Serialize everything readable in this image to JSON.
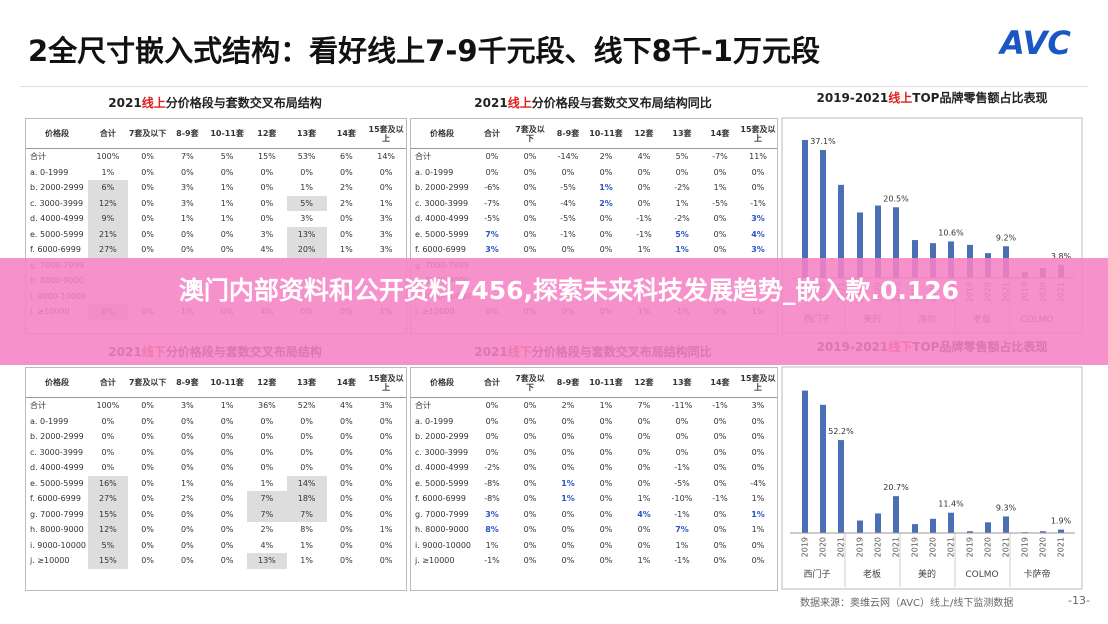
{
  "header": {
    "title": "2全尺寸嵌入式结构：看好线上7-9千元段、线下8千-1万元段",
    "logo": "AVC"
  },
  "tables": [
    {
      "title_parts": [
        "2021",
        "线上",
        "分价格段与套数交叉布局结构"
      ],
      "columns": [
        "价格段",
        "合计",
        "7套及以下",
        "8-9套",
        "10-11套",
        "12套",
        "13套",
        "14套",
        "15套及以上"
      ],
      "rows": [
        {
          "label": "合计",
          "cells": [
            "100%",
            "0%",
            "7%",
            "5%",
            "15%",
            "53%",
            "6%",
            "14%"
          ]
        },
        {
          "label": "a. 0-1999",
          "cells": [
            "1%",
            "0%",
            "0%",
            "0%",
            "0%",
            "0%",
            "0%",
            "0%"
          ]
        },
        {
          "label": "b. 2000-2999",
          "cells": [
            "6%",
            "0%",
            "3%",
            "1%",
            "0%",
            "1%",
            "2%",
            "0%"
          ]
        },
        {
          "label": "c. 3000-3999",
          "cells": [
            "12%",
            "0%",
            "3%",
            "1%",
            "0%",
            "5%",
            "2%",
            "1%"
          ]
        },
        {
          "label": "d. 4000-4999",
          "cells": [
            "9%",
            "0%",
            "1%",
            "1%",
            "0%",
            "3%",
            "0%",
            "3%"
          ]
        },
        {
          "label": "e. 5000-5999",
          "cells": [
            "21%",
            "0%",
            "0%",
            "0%",
            "3%",
            "13%",
            "0%",
            "3%"
          ]
        },
        {
          "label": "f. 6000-6999",
          "cells": [
            "27%",
            "0%",
            "0%",
            "0%",
            "4%",
            "20%",
            "1%",
            "3%"
          ]
        },
        {
          "label": "g. 7000-7999",
          "cells": []
        },
        {
          "label": "h. 8000-9000",
          "cells": []
        },
        {
          "label": "i. 9000-10000",
          "cells": []
        },
        {
          "label": "j. ≥10000",
          "cells": [
            "6%",
            "0%",
            "1%",
            "0%",
            "4%",
            "0%",
            "0%",
            "1%"
          ]
        }
      ],
      "shaded": [
        [
          2,
          0
        ],
        [
          3,
          0
        ],
        [
          4,
          0
        ],
        [
          5,
          0
        ],
        [
          6,
          0
        ],
        [
          7,
          0
        ],
        [
          8,
          0
        ],
        [
          9,
          0
        ],
        [
          10,
          0
        ],
        [
          3,
          5
        ],
        [
          5,
          5
        ],
        [
          6,
          5
        ]
      ],
      "blue": []
    },
    {
      "title_parts": [
        "2021",
        "线上",
        "分价格段与套数交叉布局结构同比"
      ],
      "columns": [
        "价格段",
        "合计",
        "7套及以下",
        "8-9套",
        "10-11套",
        "12套",
        "13套",
        "14套",
        "15套及以上"
      ],
      "rows": [
        {
          "label": "合计",
          "cells": [
            "0%",
            "0%",
            "-14%",
            "2%",
            "4%",
            "5%",
            "-7%",
            "11%"
          ]
        },
        {
          "label": "a. 0-1999",
          "cells": [
            "0%",
            "0%",
            "0%",
            "0%",
            "0%",
            "0%",
            "0%",
            "0%"
          ]
        },
        {
          "label": "b. 2000-2999",
          "cells": [
            "-6%",
            "0%",
            "-5%",
            "1%",
            "0%",
            "-2%",
            "1%",
            "0%"
          ]
        },
        {
          "label": "c. 3000-3999",
          "cells": [
            "-7%",
            "0%",
            "-4%",
            "2%",
            "0%",
            "1%",
            "-5%",
            "-1%"
          ]
        },
        {
          "label": "d. 4000-4999",
          "cells": [
            "-5%",
            "0%",
            "-5%",
            "0%",
            "-1%",
            "-2%",
            "0%",
            "3%"
          ]
        },
        {
          "label": "e. 5000-5999",
          "cells": [
            "7%",
            "0%",
            "-1%",
            "0%",
            "-1%",
            "5%",
            "0%",
            "4%"
          ]
        },
        {
          "label": "f. 6000-6999",
          "cells": [
            "3%",
            "0%",
            "0%",
            "0%",
            "1%",
            "1%",
            "0%",
            "3%"
          ]
        },
        {
          "label": "g. 7000-7999",
          "cells": []
        },
        {
          "label": "h. 8000-9000",
          "cells": []
        },
        {
          "label": "i. 9000-10000",
          "cells": []
        },
        {
          "label": "j. ≥10000",
          "cells": [
            "0%",
            "0%",
            "0%",
            "0%",
            "1%",
            "-1%",
            "0%",
            "1%"
          ]
        }
      ],
      "shaded": [],
      "blue": [
        [
          5,
          0
        ],
        [
          6,
          0
        ],
        [
          2,
          3
        ],
        [
          3,
          3
        ],
        [
          5,
          5
        ],
        [
          6,
          5
        ],
        [
          4,
          7
        ],
        [
          5,
          7
        ],
        [
          6,
          7
        ]
      ]
    },
    {
      "title_parts": [
        "2021",
        "线下",
        "分价格段与套数交叉布局结构"
      ],
      "columns": [
        "价格段",
        "合计",
        "7套及以下",
        "8-9套",
        "10-11套",
        "12套",
        "13套",
        "14套",
        "15套及以上"
      ],
      "rows": [
        {
          "label": "合计",
          "cells": [
            "100%",
            "0%",
            "3%",
            "1%",
            "36%",
            "52%",
            "4%",
            "3%"
          ]
        },
        {
          "label": "a. 0-1999",
          "cells": [
            "0%",
            "0%",
            "0%",
            "0%",
            "0%",
            "0%",
            "0%",
            "0%"
          ]
        },
        {
          "label": "b. 2000-2999",
          "cells": [
            "0%",
            "0%",
            "0%",
            "0%",
            "0%",
            "0%",
            "0%",
            "0%"
          ]
        },
        {
          "label": "c. 3000-3999",
          "cells": [
            "0%",
            "0%",
            "0%",
            "0%",
            "0%",
            "0%",
            "0%",
            "0%"
          ]
        },
        {
          "label": "d. 4000-4999",
          "cells": [
            "0%",
            "0%",
            "0%",
            "0%",
            "0%",
            "0%",
            "0%",
            "0%"
          ]
        },
        {
          "label": "e. 5000-5999",
          "cells": [
            "16%",
            "0%",
            "1%",
            "0%",
            "1%",
            "14%",
            "0%",
            "0%"
          ]
        },
        {
          "label": "f. 6000-6999",
          "cells": [
            "27%",
            "0%",
            "2%",
            "0%",
            "7%",
            "18%",
            "0%",
            "0%"
          ]
        },
        {
          "label": "g. 7000-7999",
          "cells": [
            "15%",
            "0%",
            "0%",
            "0%",
            "7%",
            "7%",
            "0%",
            "0%"
          ]
        },
        {
          "label": "h. 8000-9000",
          "cells": [
            "12%",
            "0%",
            "0%",
            "0%",
            "2%",
            "8%",
            "0%",
            "1%"
          ]
        },
        {
          "label": "i. 9000-10000",
          "cells": [
            "5%",
            "0%",
            "0%",
            "0%",
            "4%",
            "1%",
            "0%",
            "0%"
          ]
        },
        {
          "label": "j. ≥10000",
          "cells": [
            "15%",
            "0%",
            "0%",
            "0%",
            "13%",
            "1%",
            "0%",
            "0%"
          ]
        }
      ],
      "shaded": [
        [
          5,
          0
        ],
        [
          6,
          0
        ],
        [
          7,
          0
        ],
        [
          8,
          0
        ],
        [
          9,
          0
        ],
        [
          10,
          0
        ],
        [
          6,
          4
        ],
        [
          7,
          4
        ],
        [
          10,
          4
        ],
        [
          5,
          5
        ],
        [
          6,
          5
        ],
        [
          7,
          5
        ]
      ],
      "blue": []
    },
    {
      "title_parts": [
        "2021",
        "线下",
        "分价格段与套数交叉布局结构同比"
      ],
      "columns": [
        "价格段",
        "合计",
        "7套及以下",
        "8-9套",
        "10-11套",
        "12套",
        "13套",
        "14套",
        "15套及以上"
      ],
      "rows": [
        {
          "label": "合计",
          "cells": [
            "0%",
            "0%",
            "2%",
            "1%",
            "7%",
            "-11%",
            "-1%",
            "3%"
          ]
        },
        {
          "label": "a. 0-1999",
          "cells": [
            "0%",
            "0%",
            "0%",
            "0%",
            "0%",
            "0%",
            "0%",
            "0%"
          ]
        },
        {
          "label": "b. 2000-2999",
          "cells": [
            "0%",
            "0%",
            "0%",
            "0%",
            "0%",
            "0%",
            "0%",
            "0%"
          ]
        },
        {
          "label": "c. 3000-3999",
          "cells": [
            "0%",
            "0%",
            "0%",
            "0%",
            "0%",
            "0%",
            "0%",
            "0%"
          ]
        },
        {
          "label": "d. 4000-4999",
          "cells": [
            "-2%",
            "0%",
            "0%",
            "0%",
            "0%",
            "-1%",
            "0%",
            "0%"
          ]
        },
        {
          "label": "e. 5000-5999",
          "cells": [
            "-8%",
            "0%",
            "1%",
            "0%",
            "0%",
            "-5%",
            "0%",
            "-4%"
          ]
        },
        {
          "label": "f. 6000-6999",
          "cells": [
            "-8%",
            "0%",
            "1%",
            "0%",
            "1%",
            "-10%",
            "-1%",
            "1%"
          ]
        },
        {
          "label": "g. 7000-7999",
          "cells": [
            "3%",
            "0%",
            "0%",
            "0%",
            "4%",
            "-1%",
            "0%",
            "1%"
          ]
        },
        {
          "label": "h. 8000-9000",
          "cells": [
            "8%",
            "0%",
            "0%",
            "0%",
            "0%",
            "7%",
            "0%",
            "1%"
          ]
        },
        {
          "label": "i. 9000-10000",
          "cells": [
            "1%",
            "0%",
            "0%",
            "0%",
            "0%",
            "1%",
            "0%",
            "0%"
          ]
        },
        {
          "label": "j. ≥10000",
          "cells": [
            "-1%",
            "0%",
            "0%",
            "0%",
            "1%",
            "-1%",
            "0%",
            "0%"
          ]
        }
      ],
      "shaded": [],
      "blue": [
        [
          7,
          0
        ],
        [
          8,
          0
        ],
        [
          5,
          2
        ],
        [
          6,
          2
        ],
        [
          7,
          4
        ],
        [
          8,
          5
        ],
        [
          7,
          7
        ]
      ]
    }
  ],
  "chart_data": [
    {
      "type": "bar",
      "title_parts": [
        "2019-2021",
        "线上",
        "TOP品牌零售额占比表现"
      ],
      "color": "#4a6fb5",
      "years": [
        "2019",
        "2020",
        "2021"
      ],
      "brands": [
        {
          "name": "西门子",
          "values": [
            40,
            37.1,
            27
          ],
          "value_labels": [
            null,
            "37.1%",
            null
          ]
        },
        {
          "name": "美的",
          "values": [
            19,
            21,
            20.5
          ],
          "value_labels": [
            null,
            null,
            "20.5%"
          ]
        },
        {
          "name": "海尔",
          "values": [
            11,
            10.1,
            10.6
          ],
          "value_labels": [
            null,
            null,
            "10.6%"
          ]
        },
        {
          "name": "老板",
          "values": [
            9.6,
            7.2,
            9.2
          ],
          "value_labels": [
            null,
            null,
            "9.2%"
          ]
        },
        {
          "name": "COLMO",
          "values": [
            1.7,
            2.9,
            3.8
          ],
          "value_labels": [
            null,
            null,
            "3.8%"
          ]
        }
      ]
    },
    {
      "type": "bar",
      "title_parts": [
        "2019-2021",
        "线下",
        "TOP品牌零售额占比表现"
      ],
      "color": "#4a6fb5",
      "years": [
        "2019",
        "2020",
        "2021"
      ],
      "brands": [
        {
          "name": "西门子",
          "values": [
            80,
            72,
            52.2
          ],
          "value_labels": [
            null,
            null,
            "52.2%"
          ]
        },
        {
          "name": "老板",
          "values": [
            7,
            11,
            20.7
          ],
          "value_labels": [
            null,
            null,
            "20.7%"
          ]
        },
        {
          "name": "美的",
          "values": [
            5,
            8,
            11.4
          ],
          "value_labels": [
            null,
            null,
            "11.4%"
          ]
        },
        {
          "name": "COLMO",
          "values": [
            1,
            6,
            9.3
          ],
          "value_labels": [
            null,
            null,
            "9.3%"
          ]
        },
        {
          "name": "卡萨帝",
          "values": [
            0.5,
            1,
            1.9
          ],
          "value_labels": [
            null,
            null,
            "1.9%"
          ]
        }
      ]
    }
  ],
  "footer": {
    "source": "数据来源：奥维云网（AVC）线上/线下监测数据",
    "page": "-13-"
  },
  "banner": {
    "text": "澳门内部资料和公开资料7456,探索未来科技发展趋势_嵌入款.0.126"
  }
}
